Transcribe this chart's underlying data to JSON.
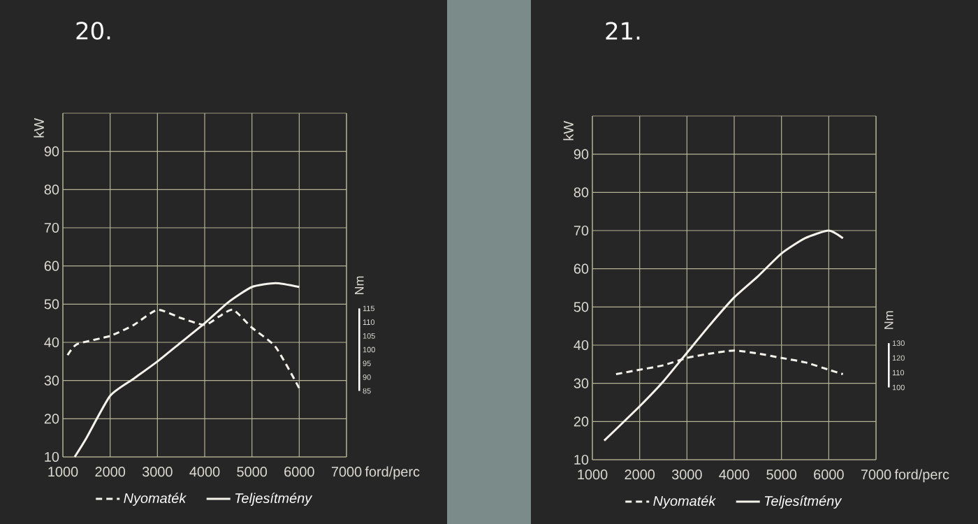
{
  "chart_data": [
    {
      "type": "line",
      "title": "20.",
      "xlabel": "ford/perc",
      "ylabel": "kW",
      "y2label": "Nm",
      "xlim": [
        1000,
        7000
      ],
      "xticks": [
        1000,
        2000,
        3000,
        4000,
        5000,
        6000,
        7000
      ],
      "ylim": [
        10,
        100
      ],
      "yticks": [
        10,
        20,
        30,
        40,
        50,
        60,
        70,
        80,
        90
      ],
      "y2lim": [
        61,
        186
      ],
      "y2ticks": [
        85,
        90,
        95,
        100,
        105,
        110,
        115
      ],
      "grid": true,
      "legend": "bottom",
      "series": [
        {
          "name": "Nyomaték",
          "color": "#f4f4ec",
          "line_style": "dashed",
          "axis": "y2",
          "x": [
            1100,
            1300,
            2000,
            2500,
            3000,
            3500,
            4000,
            4300,
            4600,
            5000,
            5500,
            6000
          ],
          "values": [
            98,
            102,
            105,
            109,
            114.5,
            111.5,
            109,
            112,
            114.5,
            108,
            101,
            86
          ]
        },
        {
          "name": "Teljesítmény",
          "color": "#f4f4ec",
          "line_style": "solid",
          "x": [
            1250,
            1500,
            2000,
            2500,
            3000,
            3500,
            4000,
            4500,
            5000,
            5500,
            6000
          ],
          "values": [
            10,
            15,
            26,
            30.5,
            35,
            40,
            45,
            50.5,
            54.5,
            55.5,
            54.5
          ]
        }
      ]
    },
    {
      "type": "line",
      "title": "21.",
      "xlabel": "ford/perc",
      "ylabel": "kW",
      "y2label": "Nm",
      "xlim": [
        1000,
        7000
      ],
      "xticks": [
        1000,
        2000,
        3000,
        4000,
        5000,
        6000,
        7000
      ],
      "ylim": [
        10,
        100
      ],
      "yticks": [
        10,
        20,
        30,
        40,
        50,
        60,
        70,
        80,
        90
      ],
      "y2lim": [
        51,
        284
      ],
      "y2ticks": [
        100,
        110,
        120,
        130
      ],
      "grid": true,
      "legend": "bottom",
      "series": [
        {
          "name": "Nyomaték",
          "color": "#f4f4ec",
          "line_style": "dashed",
          "axis": "y2",
          "x": [
            1500,
            2000,
            2500,
            3000,
            3500,
            4000,
            4500,
            5000,
            5500,
            6000,
            6300
          ],
          "values": [
            109,
            112,
            115,
            120,
            123,
            125,
            123,
            120,
            117,
            112,
            109
          ]
        },
        {
          "name": "Teljesítmény",
          "color": "#f4f4ec",
          "line_style": "solid",
          "x": [
            1250,
            2000,
            2500,
            3000,
            3500,
            4000,
            4500,
            5000,
            5500,
            6000,
            6300
          ],
          "values": [
            15,
            24,
            30.5,
            38,
            45.5,
            52.5,
            58,
            64,
            68,
            70,
            68
          ]
        }
      ]
    }
  ]
}
